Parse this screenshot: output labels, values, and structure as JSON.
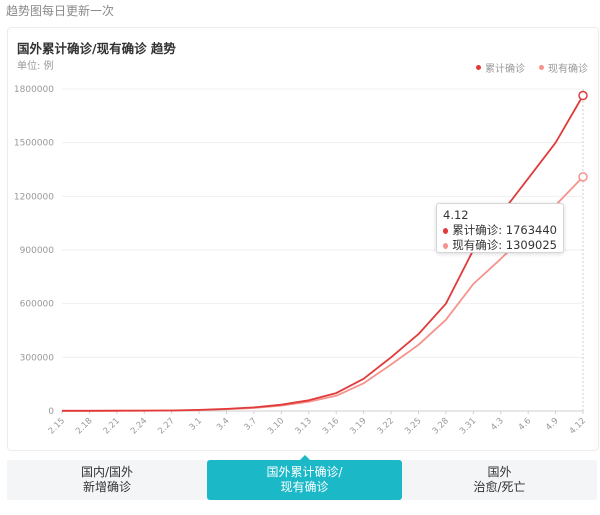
{
  "header": {
    "note": "趋势图每日更新一次"
  },
  "chart_data": {
    "type": "line",
    "title": "国外累计确诊/现有确诊 趋势",
    "unit": "单位: 例",
    "legend_position": "top-right",
    "ylim": [
      0,
      1800000
    ],
    "yticks": [
      0,
      300000,
      600000,
      900000,
      1200000,
      1500000,
      1800000
    ],
    "grid": true,
    "categories": [
      "2.15",
      "2.18",
      "2.21",
      "2.24",
      "2.27",
      "3.1",
      "3.4",
      "3.7",
      "3.10",
      "3.13",
      "3.16",
      "3.19",
      "3.22",
      "3.25",
      "3.28",
      "3.31",
      "4.3",
      "4.6",
      "4.9",
      "4.12"
    ],
    "x_tick_labels": [
      "2.15",
      "2.18",
      "2.21",
      "2.24",
      "2.27",
      "3.1",
      "3.4",
      "3.7",
      "3.10",
      "3.13",
      "3.16",
      "3.19",
      "3.22",
      "3.25",
      "3.28",
      "3.31",
      "4.3",
      "4.6",
      "4.9",
      "4.12"
    ],
    "series": [
      {
        "name": "累计确诊",
        "color": "#e03a3a",
        "values": [
          1000,
          1200,
          1500,
          2000,
          3000,
          6000,
          12000,
          20000,
          35000,
          60000,
          100000,
          180000,
          300000,
          430000,
          600000,
          900000,
          1100000,
          1300000,
          1500000,
          1763440
        ]
      },
      {
        "name": "现有确诊",
        "color": "#f5938c",
        "values": [
          900,
          1000,
          1300,
          1800,
          2700,
          5000,
          10000,
          17000,
          30000,
          52000,
          85000,
          155000,
          260000,
          370000,
          510000,
          710000,
          850000,
          1000000,
          1150000,
          1309025
        ]
      }
    ],
    "tooltip": {
      "date": "4.12",
      "rows": [
        {
          "label": "累计确诊: 1763440",
          "color": "#e03a3a"
        },
        {
          "label": "现有确诊: 1309025",
          "color": "#f5938c"
        }
      ]
    }
  },
  "tabs": [
    {
      "line1": "国内/国外",
      "line2": "新增确诊"
    },
    {
      "line1": "国外累计确诊/",
      "line2": "现有确诊"
    },
    {
      "line1": "国外",
      "line2": "治愈/死亡"
    }
  ]
}
